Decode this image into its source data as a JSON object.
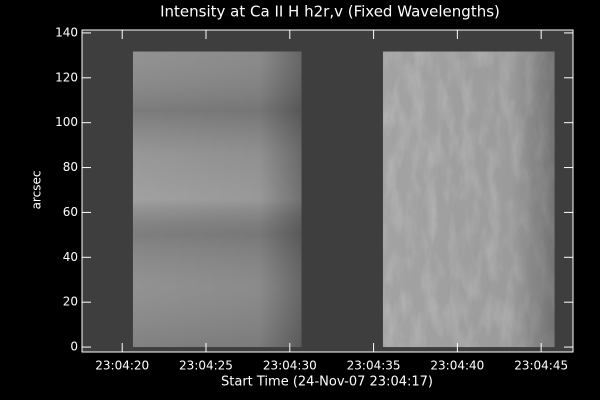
{
  "chart_data": {
    "type": "image",
    "title": "Intensity at Ca II H h2r,v (Fixed Wavelengths)",
    "x_label": "Start Time (24-Nov-07 23:04:17)",
    "y_label": "arcsec",
    "xlim": [
      0.6,
      29.9
    ],
    "ylim": [
      -2.2,
      141.3
    ],
    "xticks": [
      {
        "value": 3,
        "label": "23:04:20"
      },
      {
        "value": 8,
        "label": "23:04:25"
      },
      {
        "value": 13,
        "label": "23:04:30"
      },
      {
        "value": 18,
        "label": "23:04:35"
      },
      {
        "value": 23,
        "label": "23:04:40"
      },
      {
        "value": 28,
        "label": "23:04:45"
      }
    ],
    "yticks": [
      0,
      20,
      40,
      60,
      80,
      100,
      120,
      140
    ],
    "background_color": "#3e3e3e",
    "regions": [
      {
        "x": [
          3.64,
          13.7
        ],
        "y": [
          0,
          131.7
        ],
        "color": "#8c8c8c"
      },
      {
        "x": [
          18.56,
          28.8
        ],
        "y": [
          0,
          131.7
        ],
        "color": "#a3a3a3"
      }
    ]
  }
}
